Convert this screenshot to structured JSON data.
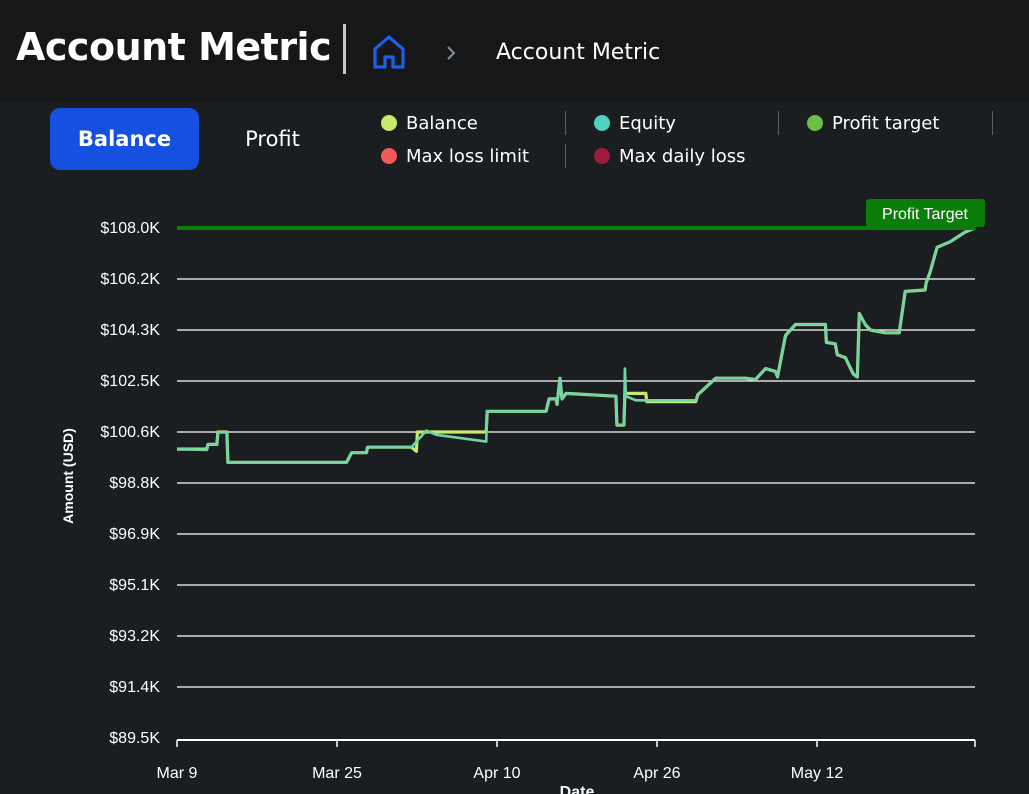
{
  "header": {
    "title": "Account Metric",
    "breadcrumb": "Account Metric"
  },
  "tabs": [
    {
      "label": "Balance",
      "active": true
    },
    {
      "label": "Profit",
      "active": false
    }
  ],
  "legend": [
    {
      "label": "Balance",
      "color": "#c7ea6a"
    },
    {
      "label": "Equity",
      "color": "#4fd0c0"
    },
    {
      "label": "Profit target",
      "color": "#6cbf44"
    },
    {
      "label": "Max loss limit",
      "color": "#f25a5a"
    },
    {
      "label": "Max daily loss",
      "color": "#a01a3a"
    }
  ],
  "colors": {
    "accent": "#1550e0",
    "balance": "#c7ea6a",
    "equity": "#6fd4a8",
    "profit_target_line": "#0a7d0a",
    "profit_target_badge": "#0a7d0a",
    "grid": "#ffffff"
  },
  "chart_data": {
    "type": "line",
    "title": "",
    "xlabel": "Date",
    "ylabel": "Amount (USD)",
    "ylim": [
      89.5,
      108.0
    ],
    "y_ticks": [
      "$108.0K",
      "$106.2K",
      "$104.3K",
      "$102.5K",
      "$100.6K",
      "$98.8K",
      "$96.9K",
      "$95.1K",
      "$93.2K",
      "$91.4K",
      "$89.5K"
    ],
    "x_ticks": [
      "Mar 9",
      "Mar 25",
      "Apr 10",
      "Apr 26",
      "May 12"
    ],
    "x_range_days": [
      0,
      80
    ],
    "profit_target": {
      "value": 108.0,
      "label": "Profit Target"
    },
    "series": [
      {
        "name": "Balance",
        "color": "#c7ea6a",
        "points": [
          [
            0,
            99.98
          ],
          [
            3,
            99.98
          ],
          [
            3.1,
            100.15
          ],
          [
            4,
            100.15
          ],
          [
            4.1,
            100.6
          ],
          [
            5,
            100.6
          ],
          [
            5.1,
            99.5
          ],
          [
            17,
            99.5
          ],
          [
            17.5,
            99.85
          ],
          [
            19,
            99.85
          ],
          [
            19.1,
            100.05
          ],
          [
            23.5,
            100.05
          ],
          [
            24,
            99.9
          ],
          [
            24.1,
            100.6
          ],
          [
            26,
            100.6
          ],
          [
            31,
            100.6
          ],
          [
            31.1,
            101.35
          ],
          [
            37,
            101.35
          ],
          [
            37.3,
            101.8
          ],
          [
            38,
            101.8
          ],
          [
            38.1,
            101.6
          ],
          [
            38.4,
            102.55
          ],
          [
            38.6,
            101.8
          ],
          [
            39,
            102.0
          ],
          [
            44,
            101.9
          ],
          [
            44.1,
            100.85
          ],
          [
            44.8,
            100.85
          ],
          [
            44.9,
            102.0
          ],
          [
            47,
            102.0
          ],
          [
            47.1,
            101.7
          ],
          [
            52,
            101.7
          ],
          [
            52.2,
            101.95
          ],
          [
            54,
            102.55
          ],
          [
            57,
            102.55
          ],
          [
            58,
            102.5
          ],
          [
            59,
            102.9
          ],
          [
            60,
            102.8
          ],
          [
            60.2,
            102.6
          ],
          [
            61,
            104.1
          ],
          [
            62,
            104.5
          ],
          [
            65,
            104.5
          ],
          [
            65.1,
            103.85
          ],
          [
            66,
            103.8
          ],
          [
            66.2,
            103.4
          ],
          [
            67,
            103.3
          ],
          [
            67.8,
            102.7
          ],
          [
            68.2,
            102.6
          ],
          [
            68.4,
            104.9
          ],
          [
            69,
            104.5
          ],
          [
            69.5,
            104.3
          ],
          [
            71,
            104.2
          ],
          [
            72.4,
            104.2
          ],
          [
            73,
            105.7
          ],
          [
            75,
            105.75
          ],
          [
            75.1,
            106.0
          ],
          [
            75.5,
            106.4
          ],
          [
            76.2,
            107.3
          ],
          [
            77.5,
            107.5
          ],
          [
            79,
            107.85
          ],
          [
            80,
            108.0
          ]
        ]
      },
      {
        "name": "Equity",
        "color": "#6fd4a8",
        "points": [
          [
            0,
            99.98
          ],
          [
            3,
            99.95
          ],
          [
            3.1,
            100.15
          ],
          [
            4,
            100.15
          ],
          [
            4.1,
            100.6
          ],
          [
            5,
            100.6
          ],
          [
            5.1,
            99.5
          ],
          [
            17,
            99.5
          ],
          [
            17.5,
            99.85
          ],
          [
            19,
            99.85
          ],
          [
            19.1,
            100.05
          ],
          [
            23.5,
            100.05
          ],
          [
            25,
            100.65
          ],
          [
            26,
            100.5
          ],
          [
            31,
            100.25
          ],
          [
            31.1,
            101.35
          ],
          [
            37,
            101.35
          ],
          [
            37.3,
            101.8
          ],
          [
            38,
            101.8
          ],
          [
            38.1,
            101.6
          ],
          [
            38.4,
            102.55
          ],
          [
            38.6,
            101.8
          ],
          [
            39,
            102.0
          ],
          [
            44,
            101.9
          ],
          [
            44.1,
            100.85
          ],
          [
            44.8,
            100.85
          ],
          [
            44.9,
            102.9
          ],
          [
            45,
            101.9
          ],
          [
            46,
            101.75
          ],
          [
            52,
            101.75
          ],
          [
            52.2,
            101.95
          ],
          [
            54,
            102.55
          ],
          [
            57,
            102.55
          ],
          [
            58,
            102.5
          ],
          [
            59,
            102.9
          ],
          [
            60,
            102.8
          ],
          [
            60.2,
            102.6
          ],
          [
            61,
            104.1
          ],
          [
            62,
            104.5
          ],
          [
            65,
            104.5
          ],
          [
            65.1,
            103.85
          ],
          [
            66,
            103.8
          ],
          [
            66.2,
            103.4
          ],
          [
            67,
            103.3
          ],
          [
            67.8,
            102.7
          ],
          [
            68.2,
            102.6
          ],
          [
            68.4,
            104.9
          ],
          [
            69,
            104.5
          ],
          [
            69.5,
            104.3
          ],
          [
            71,
            104.2
          ],
          [
            72.4,
            104.2
          ],
          [
            73,
            105.7
          ],
          [
            75,
            105.75
          ],
          [
            75.1,
            106.0
          ],
          [
            75.5,
            106.4
          ],
          [
            76.2,
            107.3
          ],
          [
            77.5,
            107.5
          ],
          [
            79,
            107.85
          ],
          [
            80,
            108.0
          ]
        ]
      }
    ]
  }
}
